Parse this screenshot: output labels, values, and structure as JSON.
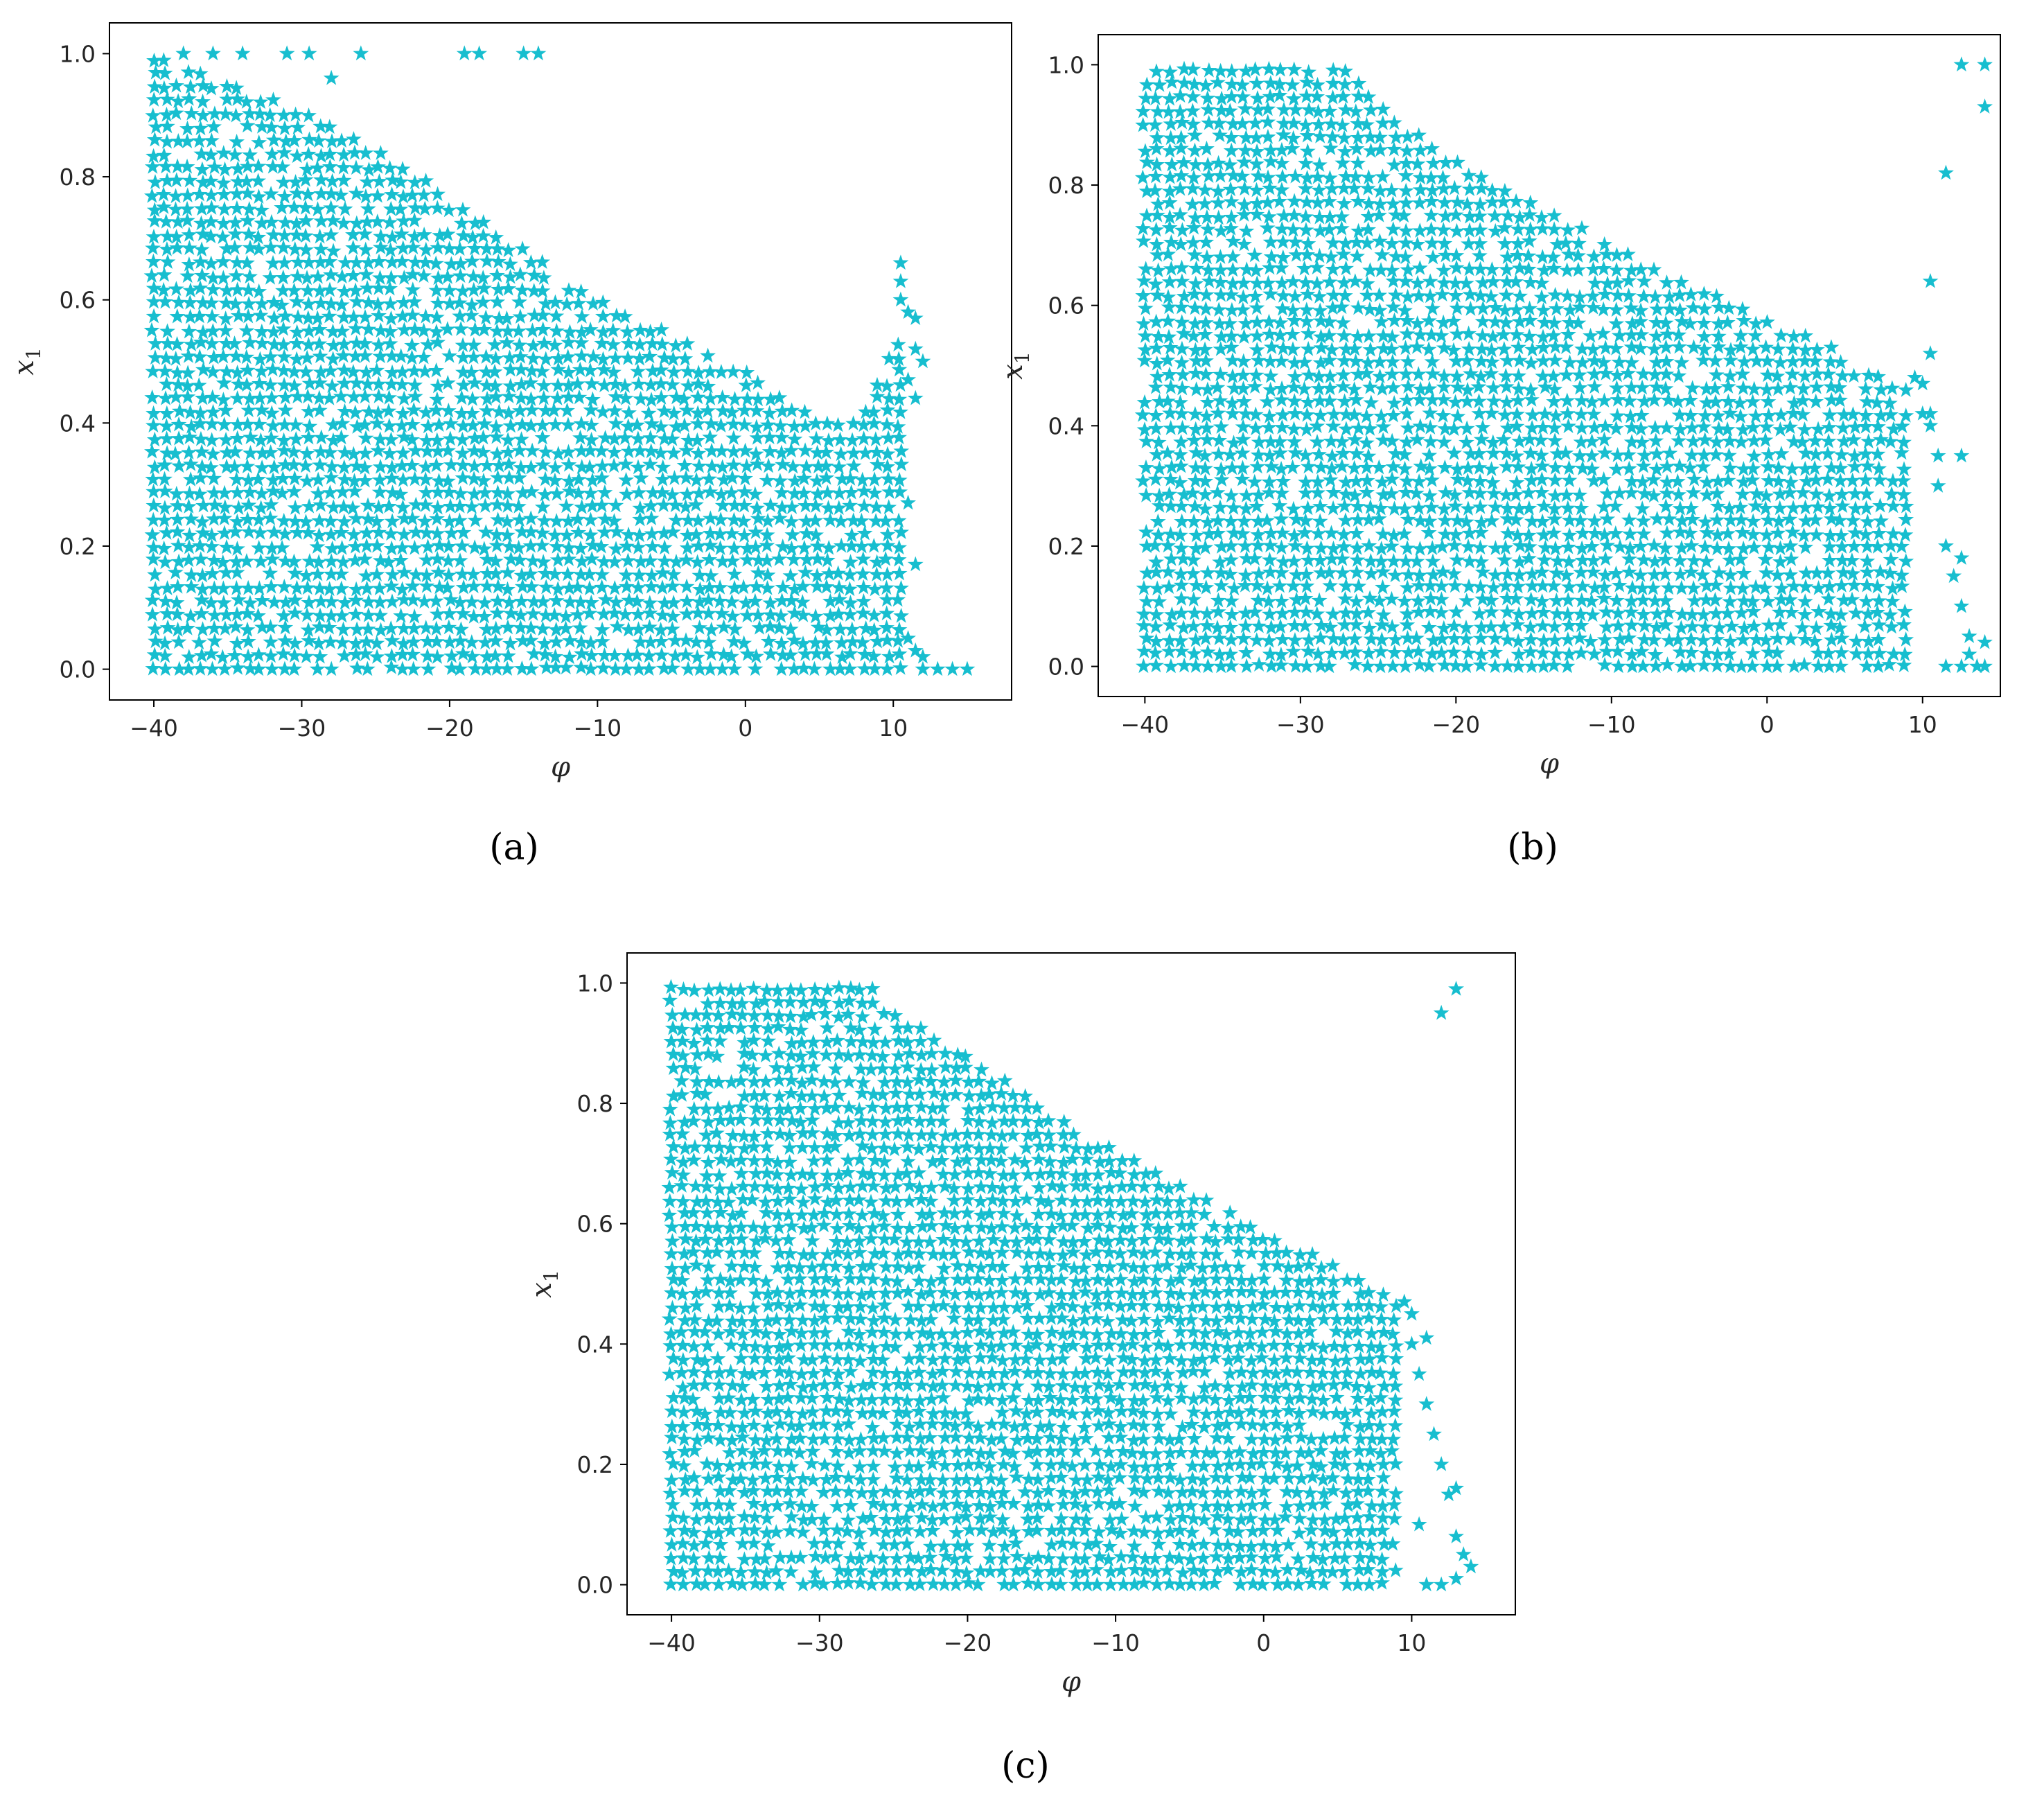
{
  "figure": {
    "labels": [
      "(a)",
      "(b)",
      "(c)"
    ]
  },
  "chart_data": [
    {
      "type": "scatter",
      "panel": "(a)",
      "xlabel": "φ",
      "ylabel": "x1",
      "xlim": [
        -43,
        18
      ],
      "ylim": [
        -0.05,
        1.05
      ],
      "xticks": [
        -40,
        -30,
        -20,
        -10,
        0,
        10
      ],
      "yticks": [
        0.0,
        0.2,
        0.4,
        0.6,
        0.8,
        1.0
      ],
      "marker": "star",
      "color": "#17BECF",
      "region": {
        "x_range": [
          -40,
          10.5
        ],
        "x_step": 0.8,
        "y_step": 0.022,
        "upper_boundary": [
          [
            -40,
            1.0
          ],
          [
            -33,
            0.94
          ],
          [
            -29,
            0.9
          ],
          [
            -20,
            0.77
          ],
          [
            -10,
            0.6
          ],
          [
            0,
            0.49
          ],
          [
            5,
            0.4
          ],
          [
            7,
            0.41
          ],
          [
            8.5,
            0.46
          ],
          [
            10.5,
            0.55
          ]
        ]
      },
      "extra_points": [
        [
          -38,
          1.0
        ],
        [
          -36,
          1.0
        ],
        [
          -34,
          1.0
        ],
        [
          -31,
          1.0
        ],
        [
          -29.5,
          1.0
        ],
        [
          -28,
          0.96
        ],
        [
          -26,
          1.0
        ],
        [
          -19,
          1.0
        ],
        [
          -18,
          1.0
        ],
        [
          -15,
          1.0
        ],
        [
          -14,
          1.0
        ],
        [
          10.5,
          0.66
        ],
        [
          10.5,
          0.63
        ],
        [
          10.5,
          0.6
        ],
        [
          11,
          0.58
        ],
        [
          11.5,
          0.57
        ],
        [
          11.5,
          0.52
        ],
        [
          12,
          0.5
        ],
        [
          11,
          0.47
        ],
        [
          11.5,
          0.44
        ],
        [
          11,
          0.27
        ],
        [
          11.5,
          0.17
        ],
        [
          11,
          0.05
        ],
        [
          11.5,
          0.03
        ],
        [
          12,
          0.02
        ],
        [
          12,
          0.0
        ],
        [
          13,
          0.0
        ],
        [
          14,
          0.0
        ],
        [
          15,
          0.0
        ]
      ]
    },
    {
      "type": "scatter",
      "panel": "(b)",
      "xlabel": "φ",
      "ylabel": "x1",
      "xlim": [
        -43,
        15
      ],
      "ylim": [
        -0.05,
        1.05
      ],
      "xticks": [
        -40,
        -30,
        -20,
        -10,
        0,
        10
      ],
      "yticks": [
        0.0,
        0.2,
        0.4,
        0.6,
        0.8,
        1.0
      ],
      "marker": "star",
      "color": "#17BECF",
      "region": {
        "x_range": [
          -40,
          9
        ],
        "x_step": 0.8,
        "y_step": 0.022,
        "upper_boundary": [
          [
            -40,
            1.0
          ],
          [
            -27,
            0.99
          ],
          [
            -25,
            0.93
          ],
          [
            -20,
            0.84
          ],
          [
            -10,
            0.7
          ],
          [
            0,
            0.58
          ],
          [
            9,
            0.47
          ]
        ]
      },
      "extra_points": [
        [
          9.5,
          0.48
        ],
        [
          10,
          0.47
        ],
        [
          10,
          0.42
        ],
        [
          10.5,
          0.4
        ],
        [
          11,
          0.35
        ],
        [
          11,
          0.3
        ],
        [
          11.5,
          0.2
        ],
        [
          12,
          0.15
        ],
        [
          12.5,
          0.18
        ],
        [
          12.5,
          0.1
        ],
        [
          13,
          0.05
        ],
        [
          13,
          0.02
        ],
        [
          14,
          0.04
        ],
        [
          14,
          0.0
        ],
        [
          13.5,
          0.0
        ],
        [
          12.5,
          0.0
        ],
        [
          11.5,
          0.0
        ],
        [
          12.5,
          1.0
        ],
        [
          14,
          1.0
        ],
        [
          14,
          0.93
        ],
        [
          11.5,
          0.82
        ],
        [
          10.5,
          0.64
        ],
        [
          10.5,
          0.52
        ],
        [
          10.5,
          0.42
        ],
        [
          12.5,
          0.35
        ]
      ]
    },
    {
      "type": "scatter",
      "panel": "(c)",
      "xlabel": "φ",
      "ylabel": "x1",
      "xlim": [
        -43,
        17
      ],
      "ylim": [
        -0.05,
        1.05
      ],
      "xticks": [
        -40,
        -30,
        -20,
        -10,
        0,
        10
      ],
      "yticks": [
        0.0,
        0.2,
        0.4,
        0.6,
        0.8,
        1.0
      ],
      "marker": "star",
      "color": "#17BECF",
      "region": {
        "x_range": [
          -40,
          9
        ],
        "x_step": 0.8,
        "y_step": 0.022,
        "upper_boundary": [
          [
            -40,
            1.0
          ],
          [
            -26,
            0.99
          ],
          [
            -23,
            0.92
          ],
          [
            -20,
            0.88
          ],
          [
            -10,
            0.72
          ],
          [
            0,
            0.59
          ],
          [
            9,
            0.48
          ]
        ]
      },
      "extra_points": [
        [
          9.5,
          0.47
        ],
        [
          10,
          0.45
        ],
        [
          10,
          0.4
        ],
        [
          11,
          0.41
        ],
        [
          10.5,
          0.35
        ],
        [
          11,
          0.3
        ],
        [
          11.5,
          0.25
        ],
        [
          12,
          0.2
        ],
        [
          12.5,
          0.15
        ],
        [
          13,
          0.16
        ],
        [
          13,
          0.08
        ],
        [
          13.5,
          0.05
        ],
        [
          14,
          0.03
        ],
        [
          13,
          0.01
        ],
        [
          12,
          0.0
        ],
        [
          11,
          0.0
        ],
        [
          10.5,
          0.1
        ],
        [
          12,
          0.95
        ],
        [
          13,
          0.99
        ]
      ]
    }
  ]
}
